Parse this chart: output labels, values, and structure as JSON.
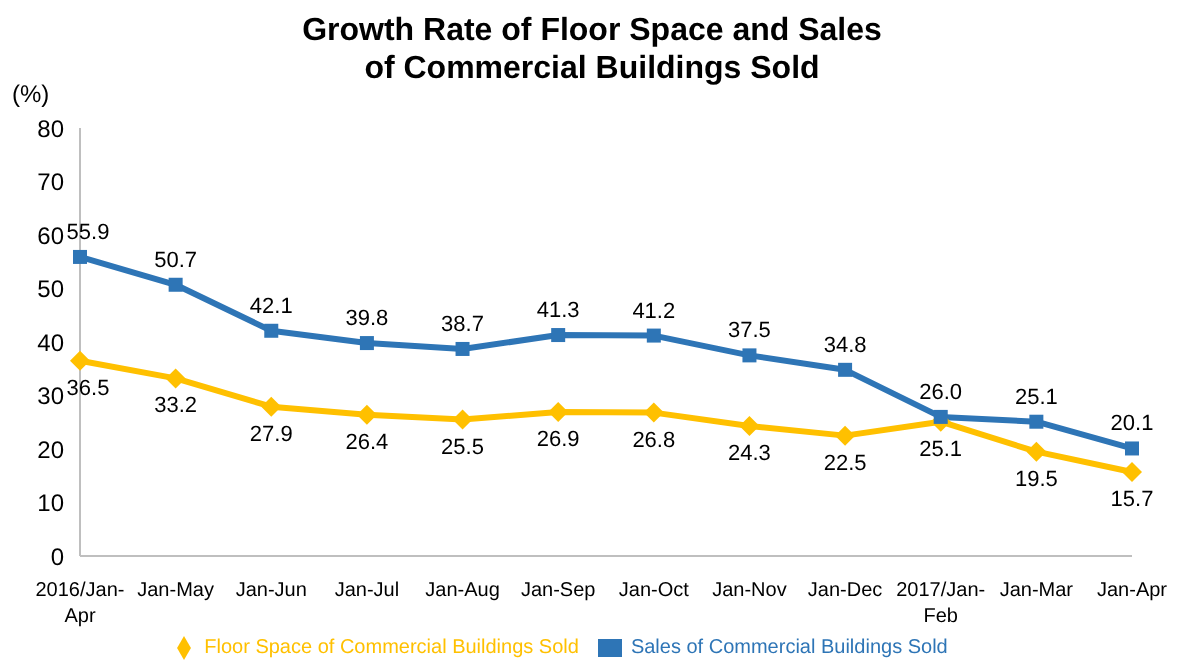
{
  "chart_data": {
    "type": "line",
    "title": "Growth Rate of Floor Space and Sales\nof Commercial Buildings Sold",
    "ylabel": "(%)",
    "categories": [
      "2016/Jan-Apr",
      "Jan-May",
      "Jan-Jun",
      "Jan-Jul",
      "Jan-Aug",
      "Jan-Sep",
      "Jan-Oct",
      "Jan-Nov",
      "Jan-Dec",
      "2017/Jan-Feb",
      "Jan-Mar",
      "Jan-Apr"
    ],
    "series": [
      {
        "name": "Floor Space of Commercial Buildings Sold",
        "color": "#ffc000",
        "marker": "diamond",
        "values": [
          36.5,
          33.2,
          27.9,
          26.4,
          25.5,
          26.9,
          26.8,
          24.3,
          22.5,
          25.1,
          19.5,
          15.7
        ],
        "value_labels": [
          "36.5",
          "33.2",
          "27.9",
          "26.4",
          "25.5",
          "26.9",
          "26.8",
          "24.3",
          "22.5",
          "25.1",
          "19.5",
          "15.7"
        ]
      },
      {
        "name": "Sales of Commercial Buildings Sold",
        "color": "#2e75b6",
        "marker": "square",
        "values": [
          55.9,
          50.7,
          42.1,
          39.8,
          38.7,
          41.3,
          41.2,
          37.5,
          34.8,
          26.0,
          25.1,
          20.1
        ],
        "value_labels": [
          "55.9",
          "50.7",
          "42.1",
          "39.8",
          "38.7",
          "41.3",
          "41.2",
          "37.5",
          "34.8",
          "26.0",
          "25.1",
          "20.1"
        ]
      }
    ],
    "ylim": [
      0,
      80
    ],
    "yticks": [
      0,
      10,
      20,
      30,
      40,
      50,
      60,
      70,
      80
    ],
    "grid": false,
    "legend": "bottom",
    "line_style": "solid"
  }
}
